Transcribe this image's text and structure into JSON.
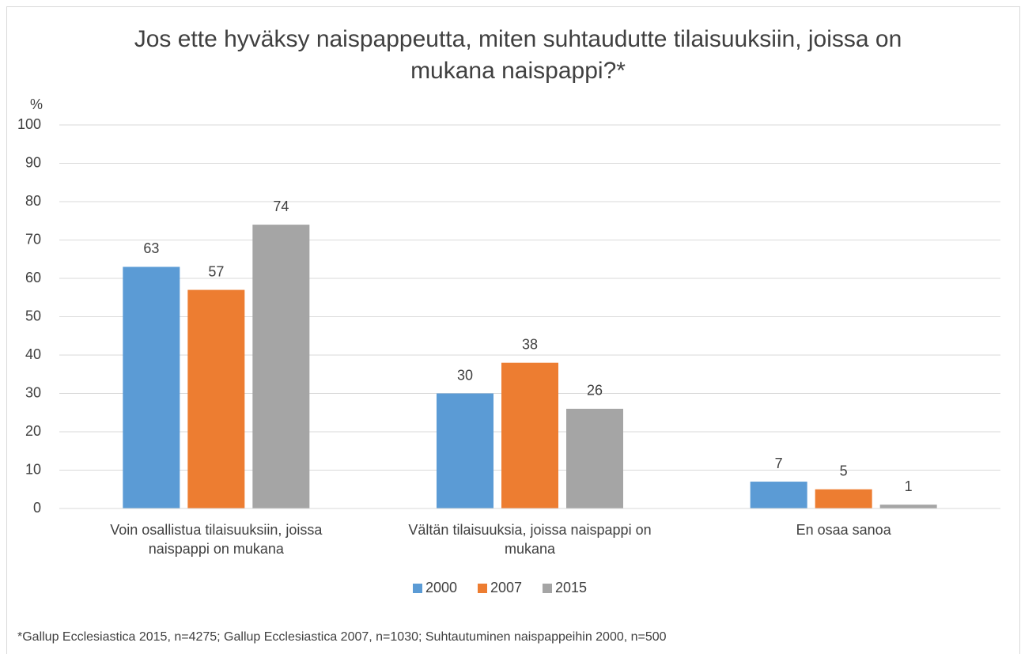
{
  "chart_data": {
    "type": "bar",
    "title": "Jos ette hyväksy naispappeutta, miten suhtaudutte tilaisuuksiin, joissa on mukana naispappi?*",
    "y_label": "%",
    "categories": [
      "Voin osallistua tilaisuuksiin, joissa naispappi on mukana",
      "Vältän tilaisuuksia, joissa naispappi on mukana",
      "En osaa sanoa"
    ],
    "series": [
      {
        "name": "2000",
        "color": "#5b9bd5",
        "values": [
          63,
          30,
          7
        ]
      },
      {
        "name": "2007",
        "color": "#ed7d31",
        "values": [
          57,
          38,
          5
        ]
      },
      {
        "name": "2015",
        "color": "#a5a5a5",
        "values": [
          74,
          26,
          1
        ]
      }
    ],
    "ylim": [
      0,
      100
    ],
    "yticks": [
      0,
      10,
      20,
      30,
      40,
      50,
      60,
      70,
      80,
      90,
      100
    ],
    "grid": true,
    "legend": "bottom",
    "footnote": "*Gallup Ecclesiastica 2015, n=4275; Gallup Ecclesiastica 2007, n=1030; Suhtautuminen naispappeihin 2000, n=500"
  }
}
